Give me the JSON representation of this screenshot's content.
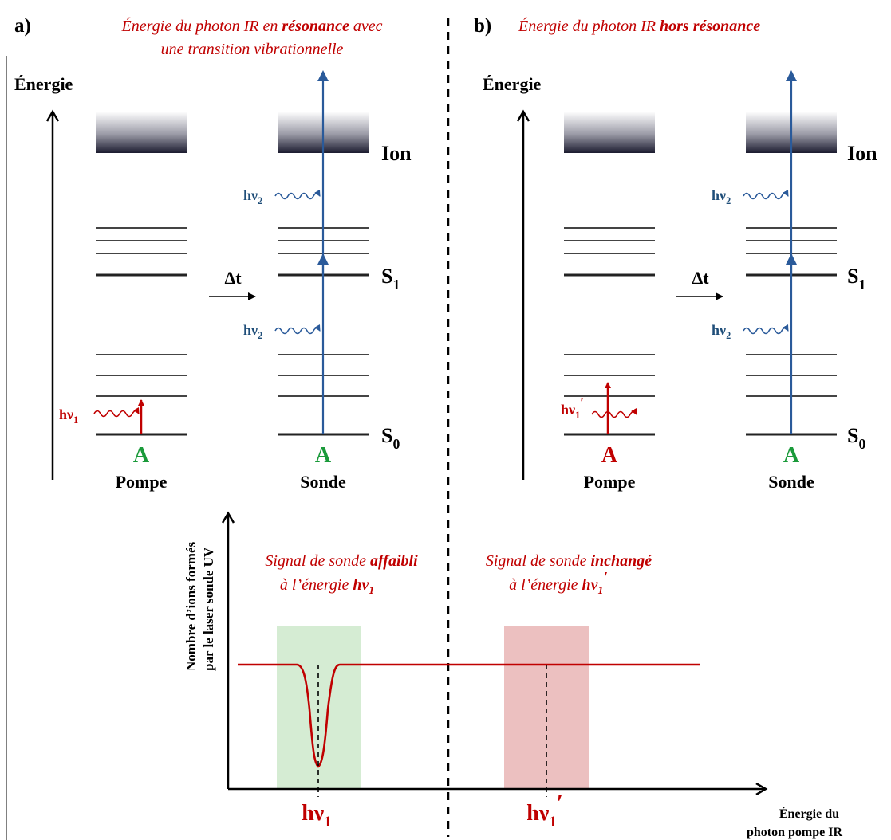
{
  "panel_a": {
    "tag": "a)",
    "caption_line1_pre": "Énergie du photon IR en ",
    "caption_line1_bold": "résonance",
    "caption_line1_post": " avec",
    "caption_line2": "une transition vibrationnelle"
  },
  "panel_b": {
    "tag": "b)",
    "caption_pre": "Énergie du photon IR ",
    "caption_bold": "hors résonance"
  },
  "energy_label": "Énergie",
  "levels": {
    "ion": "Ion",
    "s1": "S",
    "s1_sub": "1",
    "s0": "S",
    "s0_sub": "0"
  },
  "delta_t": "Δt",
  "species": "A",
  "pump": "Pompe",
  "probe": "Sonde",
  "hv": "hν",
  "sub1": "1",
  "sub2": "2",
  "prime": "′",
  "plot": {
    "ylabel_line1": "Nombre d’ions formés",
    "ylabel_line2": "par le laser sonde UV",
    "xlabel_line1": "Énergie du",
    "xlabel_line2": "photon pompe IR",
    "annot_a_line1_pre": "Signal de sonde ",
    "annot_a_line1_bold": "affaibli",
    "annot_a_line2_pre": "à l’énergie ",
    "annot_b_line1_pre": "Signal de sonde ",
    "annot_b_line1_bold": "inchangé",
    "annot_b_line2_pre": "à l’énergie "
  },
  "colors": {
    "red": "#c00000",
    "blue": "#1f4e79",
    "green": "#1a9a3a",
    "green_band": "#d5ecd3",
    "red_band": "#ecc0c0"
  }
}
